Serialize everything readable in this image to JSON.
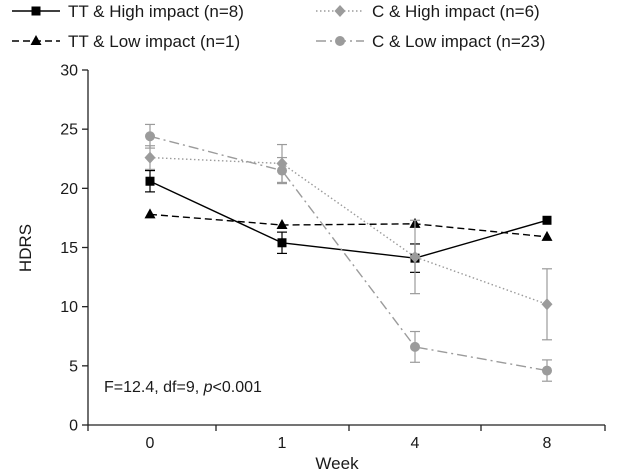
{
  "chart_data": {
    "type": "line",
    "categories": [
      "0",
      "1",
      "4",
      "8"
    ],
    "xlabel": "Week",
    "ylabel": "HDRS",
    "ylim": [
      0,
      30
    ],
    "yticks": [
      0,
      5,
      10,
      15,
      20,
      25,
      30
    ],
    "grid": false,
    "legend_position": "top",
    "annotation": {
      "prefix": "F=12.4, df=9, ",
      "p_symbol": "p",
      "suffix": "<0.001"
    },
    "series": [
      {
        "name": "TT & High impact (n=8)",
        "values": [
          20.6,
          15.4,
          14.1,
          17.3
        ],
        "errors": [
          0.9,
          0.9,
          1.2,
          null
        ],
        "color": "#000000",
        "line_style": "solid",
        "marker": "square"
      },
      {
        "name": "TT & Low impact (n=1)",
        "values": [
          17.8,
          16.9,
          17.0,
          15.9
        ],
        "errors": [
          null,
          null,
          null,
          null
        ],
        "color": "#000000",
        "line_style": "dashed",
        "marker": "triangle"
      },
      {
        "name": "C & High impact (n=6)",
        "values": [
          22.6,
          22.1,
          14.2,
          10.2
        ],
        "errors": [
          1.0,
          1.6,
          3.1,
          3.0
        ],
        "color": "#9b9b9b",
        "line_style": "dotted",
        "marker": "diamond"
      },
      {
        "name": "C & Low impact (n=23)",
        "values": [
          24.4,
          21.5,
          6.6,
          4.6
        ],
        "errors": [
          1.0,
          1.1,
          1.3,
          0.9
        ],
        "color": "#9b9b9b",
        "line_style": "dashdot",
        "marker": "circle"
      }
    ]
  }
}
